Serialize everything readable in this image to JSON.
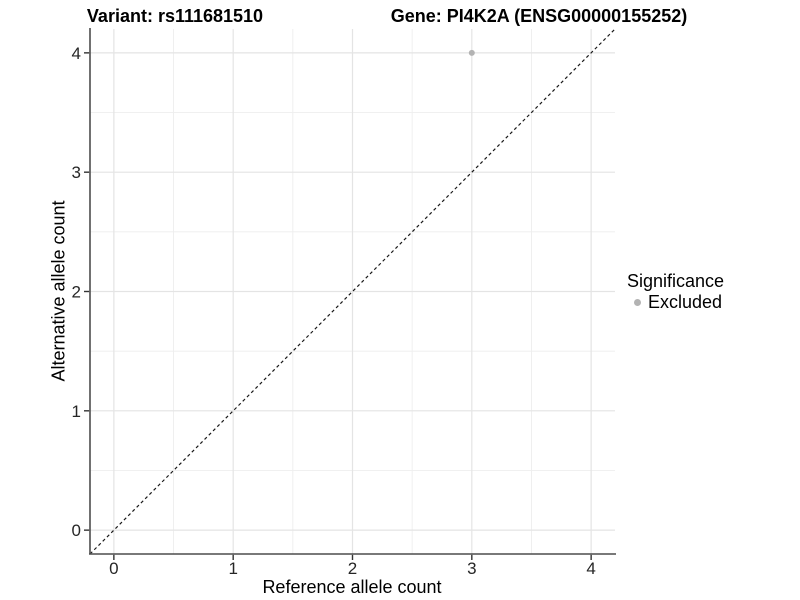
{
  "chart_data": {
    "type": "scatter",
    "title_left": "Variant: rs111681510",
    "title_right": "Gene: PI4K2A (ENSG00000155252)",
    "xlabel": "Reference allele count",
    "ylabel": "Alternative allele count",
    "xlim": [
      -0.2,
      4.2
    ],
    "ylim": [
      -0.2,
      4.2
    ],
    "xticks": [
      0,
      1,
      2,
      3,
      4
    ],
    "yticks": [
      0,
      1,
      2,
      3,
      4
    ],
    "x_minor_gridlines": [
      0.5,
      1.5,
      2.5,
      3.5
    ],
    "y_minor_gridlines": [
      0.5,
      1.5,
      2.5,
      3.5
    ],
    "grid": true,
    "legend_position": "right",
    "points": [
      {
        "x": 3,
        "y": 4,
        "significance": "Excluded"
      }
    ],
    "abline": {
      "slope": 1,
      "intercept": 0,
      "style": "dashed"
    },
    "legend": {
      "title": "Significance",
      "entries": [
        {
          "label": "Excluded",
          "color": "#b3b3b3"
        }
      ]
    },
    "colors": {
      "background": "#ffffff",
      "grid_major": "#e4e4e4",
      "grid_minor": "#eeeeee",
      "axis_line": "#4d4d4d",
      "tick_mark": "#333333",
      "tick_label": "#262626",
      "title_text": "#000000",
      "point": "#b3b3b3",
      "abline": "#1a1a1a"
    }
  }
}
